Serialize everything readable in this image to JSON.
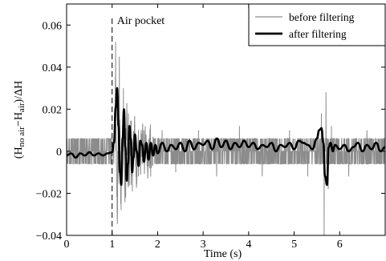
{
  "chart_data": {
    "type": "line",
    "xlabel": "Time (s)",
    "ylabel": {
      "parts": [
        {
          "text": "(H",
          "sub": false
        },
        {
          "text": "no air",
          "sub": true
        },
        {
          "text": "−H",
          "sub": false
        },
        {
          "text": "air",
          "sub": true
        },
        {
          "text": ")/ΔH",
          "sub": false
        }
      ]
    },
    "xlim": [
      0,
      7
    ],
    "ylim": [
      -0.04,
      0.07
    ],
    "xticks": [
      0,
      1,
      2,
      3,
      4,
      5,
      6
    ],
    "yticks": [
      -0.04,
      -0.02,
      0,
      0.02,
      0.04,
      0.06
    ],
    "xtick_labels": [
      "0",
      "1",
      "2",
      "3",
      "4",
      "5",
      "6"
    ],
    "ytick_labels": [
      "−0.04",
      "−0.02",
      "0",
      "0.02",
      "0.04",
      "0.06"
    ],
    "annotation": {
      "text": "Air pocket",
      "x": 1.0
    },
    "legend": {
      "placement": "top-right",
      "entries": [
        {
          "label": "before filtering",
          "color": "#8c8c8c"
        },
        {
          "label": "after filtering",
          "color": "#000000"
        }
      ]
    },
    "series": [
      {
        "name": "before filtering",
        "color": "#8c8c8c",
        "style": "noisy-quantized",
        "quantization_levels": [
          -0.006,
          0,
          0.006
        ],
        "spikes": [
          {
            "x": 1.08,
            "y": 0.052
          },
          {
            "x": 1.12,
            "y": -0.03
          },
          {
            "x": 1.16,
            "y": 0.045
          },
          {
            "x": 1.2,
            "y": -0.028
          },
          {
            "x": 1.25,
            "y": 0.03
          },
          {
            "x": 1.3,
            "y": -0.022
          },
          {
            "x": 1.36,
            "y": 0.018
          },
          {
            "x": 1.42,
            "y": -0.016
          },
          {
            "x": 1.5,
            "y": 0.012
          },
          {
            "x": 1.58,
            "y": -0.012
          },
          {
            "x": 1.7,
            "y": 0.01
          },
          {
            "x": 1.85,
            "y": -0.012
          },
          {
            "x": 2.1,
            "y": 0.01
          },
          {
            "x": 2.4,
            "y": -0.01
          },
          {
            "x": 2.9,
            "y": 0.01
          },
          {
            "x": 3.3,
            "y": -0.012
          },
          {
            "x": 3.8,
            "y": 0.012
          },
          {
            "x": 4.3,
            "y": -0.012
          },
          {
            "x": 4.9,
            "y": 0.01
          },
          {
            "x": 5.3,
            "y": -0.012
          },
          {
            "x": 5.6,
            "y": 0.018
          },
          {
            "x": 5.66,
            "y": -0.04
          },
          {
            "x": 5.7,
            "y": 0.028
          },
          {
            "x": 5.75,
            "y": -0.018
          },
          {
            "x": 5.82,
            "y": 0.012
          },
          {
            "x": 6.2,
            "y": -0.012
          },
          {
            "x": 6.6,
            "y": 0.01
          }
        ]
      },
      {
        "name": "after filtering",
        "color": "#000000",
        "x": [
          0,
          0.1,
          0.2,
          0.3,
          0.4,
          0.5,
          0.6,
          0.7,
          0.8,
          0.9,
          1.0,
          1.04,
          1.08,
          1.11,
          1.14,
          1.17,
          1.2,
          1.23,
          1.26,
          1.29,
          1.32,
          1.35,
          1.38,
          1.41,
          1.44,
          1.47,
          1.5,
          1.54,
          1.58,
          1.62,
          1.66,
          1.7,
          1.75,
          1.8,
          1.85,
          1.9,
          1.95,
          2.0,
          2.1,
          2.2,
          2.3,
          2.4,
          2.5,
          2.6,
          2.7,
          2.8,
          2.9,
          3.0,
          3.1,
          3.2,
          3.3,
          3.4,
          3.5,
          3.6,
          3.7,
          3.8,
          3.9,
          4.0,
          4.1,
          4.2,
          4.3,
          4.4,
          4.5,
          4.6,
          4.7,
          4.8,
          4.9,
          5.0,
          5.1,
          5.2,
          5.3,
          5.4,
          5.5,
          5.55,
          5.6,
          5.64,
          5.68,
          5.72,
          5.76,
          5.8,
          5.85,
          5.9,
          6.0,
          6.1,
          6.2,
          6.3,
          6.4,
          6.5,
          6.6,
          6.7,
          6.8,
          6.9,
          7.0
        ],
        "y": [
          -0.002,
          -0.001,
          -0.003,
          -0.001,
          -0.002,
          -0.0005,
          -0.002,
          -0.001,
          -0.002,
          -0.001,
          -0.0005,
          0.004,
          0.021,
          0.03,
          0.012,
          -0.01,
          -0.016,
          0.006,
          0.02,
          0.002,
          -0.014,
          -0.006,
          0.012,
          0.006,
          -0.01,
          -0.003,
          0.008,
          0.0,
          -0.007,
          0.005,
          0.003,
          -0.005,
          0.004,
          -0.004,
          0.004,
          -0.002,
          0.003,
          -0.001,
          0.004,
          0.0,
          0.003,
          0.001,
          0.004,
          0.0,
          0.005,
          0.001,
          0.004,
          0.003,
          0.005,
          0.001,
          0.006,
          0.002,
          0.005,
          0.001,
          0.004,
          0.002,
          0.005,
          0.002,
          0.004,
          0.001,
          0.003,
          0.002,
          0.004,
          0.0,
          0.003,
          0.002,
          0.004,
          0.001,
          0.005,
          0.004,
          0.003,
          0.001,
          0.006,
          0.01,
          0.011,
          0.004,
          -0.012,
          -0.016,
          0.002,
          0.004,
          0.0,
          0.003,
          0.001,
          0.003,
          0.0,
          0.002,
          0.004,
          0.0,
          0.003,
          0.001,
          0.004,
          0.0,
          0.002
        ]
      }
    ]
  }
}
